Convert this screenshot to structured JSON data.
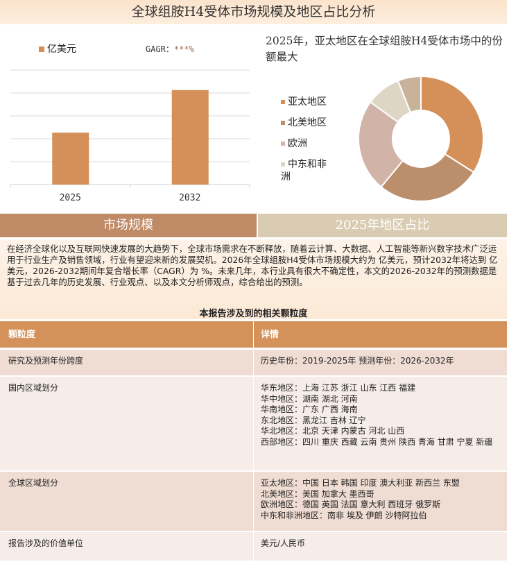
{
  "title": "全球组胺H4受体市场规模及地区占比分析",
  "chart_data": [
    {
      "type": "bar",
      "categories": [
        "2025",
        "2032"
      ],
      "series": [
        {
          "name": "亿美元",
          "values": [
            1.95,
            3.55
          ]
        }
      ],
      "ylim": [
        0,
        4.3
      ],
      "grid": true,
      "legend": "top-left",
      "gagr_label": "GAGR：",
      "gagr_value": "***%",
      "color": "#d49058"
    },
    {
      "type": "pie",
      "donut": true,
      "title": "2025年，亚太地区在全球组胺H4受体市场中的份额最大",
      "labels": [
        "亚太地区",
        "北美地区",
        "欧洲",
        "中东和非洲",
        ""
      ],
      "values": [
        34,
        27,
        24,
        9,
        6
      ],
      "colors": [
        "#d49058",
        "#bb8f6c",
        "#d2b3a8",
        "#ddd6c5",
        "#c8b39a"
      ],
      "legend": "left"
    }
  ],
  "bands": {
    "left": "市场规模",
    "right": "2025年地区占比"
  },
  "paragraph": "在经济全球化以及互联网快速发展的大趋势下，全球市场需求在不断释放，随着云计算、大数据、人工智能等新兴数字技术广泛运用于行业生产及销售领域，行业有望迎来新的发展契机。2026年全球组胺H4受体市场规模大约为 亿美元，预计2032年将达到 亿美元，2026-2032期间年复合增长率（CAGR）为 %。未来几年，本行业具有很大不确定性，本文的2026-2032年的预测数据是基于过去几年的历史发展、行业观点、以及本文分析师观点，综合给出的预测。",
  "table": {
    "title": "本报告涉及到的相关颗粒度",
    "headers": [
      "颗粒度",
      "详情"
    ],
    "rows": [
      [
        "研究及预测年份跨度",
        "历史年份：2019-2025年 预测年份：2026-2032年"
      ],
      [
        "国内区域划分",
        "华东地区：上海  江苏  浙江  山东  江西  福建\n华中地区：湖南  湖北  河南\n华南地区：广东  广西  海南\n东北地区：黑龙江  吉林  辽宁\n华北地区：北京  天津  内蒙古  河北  山西\n西部地区：四川  重庆  西藏  云南  贵州  陕西  青海  甘肃  宁夏  新疆"
      ],
      [
        "全球区域划分",
        "亚太地区：中国  日本  韩国  印度  澳大利亚  新西兰  东盟\n北美地区：美国  加拿大  墨西哥\n欧洲地区：德国  英国  法国  意大利  西班牙  俄罗斯\n中东和非洲地区：南非  埃及  伊朗  沙特阿拉伯"
      ],
      [
        "报告涉及的价值单位",
        "美元/人民币"
      ]
    ]
  }
}
